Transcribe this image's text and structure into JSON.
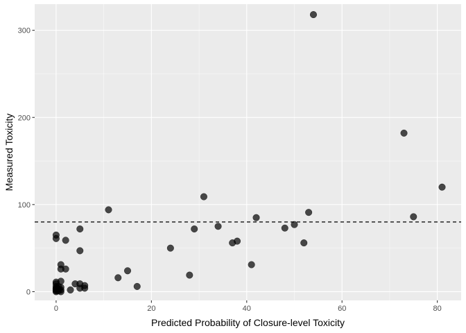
{
  "chart_data": {
    "type": "scatter",
    "xlabel": "Predicted Probability of Closure-level Toxicity",
    "ylabel": "Measured Toxicity",
    "xlim": [
      -4.5,
      85
    ],
    "ylim": [
      -10,
      330
    ],
    "x_ticks": [
      0,
      20,
      40,
      60,
      80
    ],
    "x_tick_labels": [
      "0",
      "20",
      "40",
      "60",
      "80"
    ],
    "y_ticks": [
      0,
      100,
      200,
      300
    ],
    "y_tick_labels": [
      "0",
      "100",
      "200",
      "300"
    ],
    "grid": true,
    "reference_line": {
      "y": 80,
      "style": "dashed"
    },
    "points": [
      {
        "x": 0,
        "y": 65
      },
      {
        "x": 0,
        "y": 61
      },
      {
        "x": 0,
        "y": 11
      },
      {
        "x": 0,
        "y": 9
      },
      {
        "x": 0,
        "y": 6
      },
      {
        "x": 0,
        "y": 4
      },
      {
        "x": 0,
        "y": 3
      },
      {
        "x": 0,
        "y": 2
      },
      {
        "x": 0,
        "y": 1
      },
      {
        "x": 0,
        "y": 0
      },
      {
        "x": 0.5,
        "y": 3
      },
      {
        "x": 0.5,
        "y": 6
      },
      {
        "x": 0.5,
        "y": 1
      },
      {
        "x": 1,
        "y": 31
      },
      {
        "x": 1,
        "y": 26
      },
      {
        "x": 1,
        "y": 12
      },
      {
        "x": 1,
        "y": 5
      },
      {
        "x": 1,
        "y": 2
      },
      {
        "x": 1,
        "y": 0
      },
      {
        "x": 2,
        "y": 59
      },
      {
        "x": 2,
        "y": 26
      },
      {
        "x": 3,
        "y": 2
      },
      {
        "x": 4,
        "y": 9
      },
      {
        "x": 5,
        "y": 72
      },
      {
        "x": 5,
        "y": 47
      },
      {
        "x": 5,
        "y": 9
      },
      {
        "x": 5,
        "y": 4
      },
      {
        "x": 6,
        "y": 7
      },
      {
        "x": 6,
        "y": 4
      },
      {
        "x": 11,
        "y": 94
      },
      {
        "x": 13,
        "y": 16
      },
      {
        "x": 15,
        "y": 24
      },
      {
        "x": 17,
        "y": 6
      },
      {
        "x": 24,
        "y": 50
      },
      {
        "x": 28,
        "y": 19
      },
      {
        "x": 29,
        "y": 72
      },
      {
        "x": 31,
        "y": 109
      },
      {
        "x": 34,
        "y": 75
      },
      {
        "x": 37,
        "y": 56
      },
      {
        "x": 38,
        "y": 58
      },
      {
        "x": 41,
        "y": 31
      },
      {
        "x": 42,
        "y": 85
      },
      {
        "x": 48,
        "y": 73
      },
      {
        "x": 50,
        "y": 77
      },
      {
        "x": 52,
        "y": 56
      },
      {
        "x": 53,
        "y": 91
      },
      {
        "x": 54,
        "y": 318
      },
      {
        "x": 73,
        "y": 182
      },
      {
        "x": 75,
        "y": 86
      },
      {
        "x": 81,
        "y": 120
      }
    ]
  },
  "colors": {
    "panel_background": "#ebebeb",
    "grid_major": "#ffffff",
    "point_fill": "#000000",
    "point_opacity": 0.7,
    "reference_line": "#333333",
    "tick_mark": "#333333"
  }
}
